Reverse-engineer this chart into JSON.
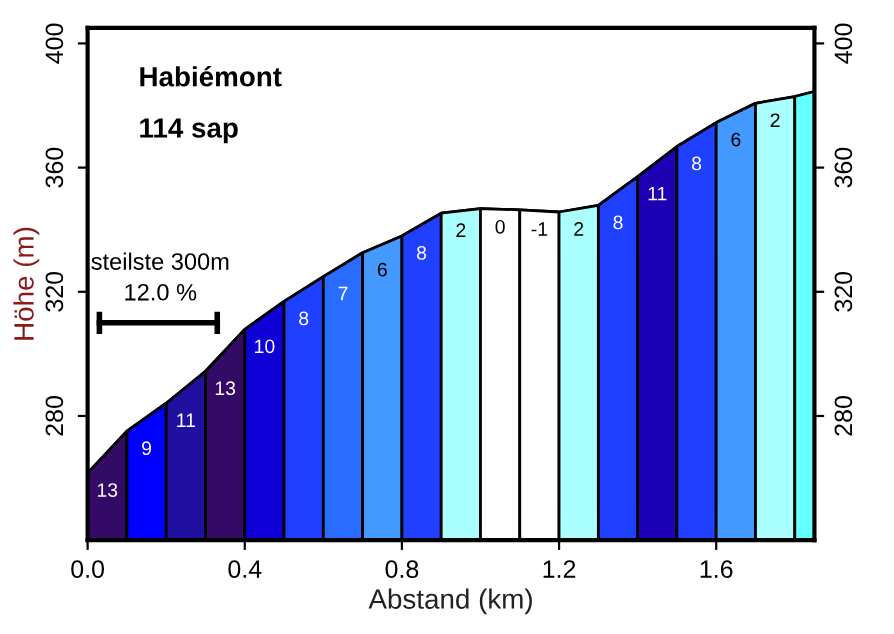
{
  "chart_data": {
    "type": "area",
    "title": "Habiémont",
    "subtitle": "114 sap",
    "xlabel": "Abstand (km)",
    "ylabel": "Höhe (m)",
    "xlim": [
      0,
      1.85
    ],
    "xticks": [
      {
        "value": 0,
        "label": "0.0"
      },
      {
        "value": 0.4,
        "label": "0.4"
      },
      {
        "value": 0.8,
        "label": "0.8"
      },
      {
        "value": 1.2,
        "label": "1.2"
      },
      {
        "value": 1.6,
        "label": "1.6"
      }
    ],
    "ylim": [
      240,
      405
    ],
    "yticks": [
      280,
      320,
      360,
      400
    ],
    "y2lim": [
      240,
      405
    ],
    "y2ticks": [
      280,
      320,
      360,
      400
    ],
    "grid": false,
    "legend": false,
    "series": [
      {
        "x": [
          0.0,
          0.1,
          0.2,
          0.3,
          0.4,
          0.5,
          0.6,
          0.7,
          0.8,
          0.9,
          1.0,
          1.1,
          1.2,
          1.3,
          1.4,
          1.5,
          1.6,
          1.7,
          1.8,
          1.85
        ],
        "values": [
          261.6,
          275.1,
          284.1,
          294.4,
          307.9,
          316.9,
          324.9,
          332.6,
          338.0,
          345.3,
          346.8,
          346.4,
          345.7,
          347.8,
          357.1,
          366.8,
          374.5,
          380.7,
          382.9,
          384.5
        ]
      },
      {
        "type": "line",
        "color": "#000000",
        "x": [
          0.03,
          0.33
        ],
        "values": [
          310,
          310
        ]
      }
    ],
    "bands": [
      {
        "axis": "x",
        "from": 0.0,
        "to": 0.1,
        "label": "13",
        "color": "#330a66"
      },
      {
        "axis": "x",
        "from": 0.1,
        "to": 0.2,
        "label": "9",
        "color": "#0000ff"
      },
      {
        "axis": "x",
        "from": 0.2,
        "to": 0.3,
        "label": "11",
        "color": "#1f10a0"
      },
      {
        "axis": "x",
        "from": 0.3,
        "to": 0.4,
        "label": "13",
        "color": "#330a66"
      },
      {
        "axis": "x",
        "from": 0.4,
        "to": 0.5,
        "label": "10",
        "color": "#1000d8"
      },
      {
        "axis": "x",
        "from": 0.5,
        "to": 0.6,
        "label": "8",
        "color": "#2040ff"
      },
      {
        "axis": "x",
        "from": 0.6,
        "to": 0.7,
        "label": "7",
        "color": "#2a6cff"
      },
      {
        "axis": "x",
        "from": 0.7,
        "to": 0.8,
        "label": "6",
        "color": "#4499ff"
      },
      {
        "axis": "x",
        "from": 0.8,
        "to": 0.9,
        "label": "8",
        "color": "#2040ff"
      },
      {
        "axis": "x",
        "from": 0.9,
        "to": 1.0,
        "label": "2",
        "color": "#aaffff"
      },
      {
        "axis": "x",
        "from": 1.0,
        "to": 1.1,
        "label": "0",
        "color": "#ffffff"
      },
      {
        "axis": "x",
        "from": 1.1,
        "to": 1.2,
        "label": "-1",
        "color": "#ffffff"
      },
      {
        "axis": "x",
        "from": 1.2,
        "to": 1.3,
        "label": "2",
        "color": "#aaffff"
      },
      {
        "axis": "x",
        "from": 1.3,
        "to": 1.4,
        "label": "8",
        "color": "#2040ff"
      },
      {
        "axis": "x",
        "from": 1.4,
        "to": 1.5,
        "label": "11",
        "color": "#1c00b4"
      },
      {
        "axis": "x",
        "from": 1.5,
        "to": 1.6,
        "label": "8",
        "color": "#2040ff"
      },
      {
        "axis": "x",
        "from": 1.6,
        "to": 1.7,
        "label": "6",
        "color": "#4499ff"
      },
      {
        "axis": "x",
        "from": 1.7,
        "to": 1.8,
        "label": "2",
        "color": "#aaffff"
      },
      {
        "axis": "x",
        "from": 1.8,
        "to": 1.85,
        "color": "#66ffff"
      }
    ],
    "annotations": [
      "steilste 300m",
      "12.0 %"
    ]
  }
}
